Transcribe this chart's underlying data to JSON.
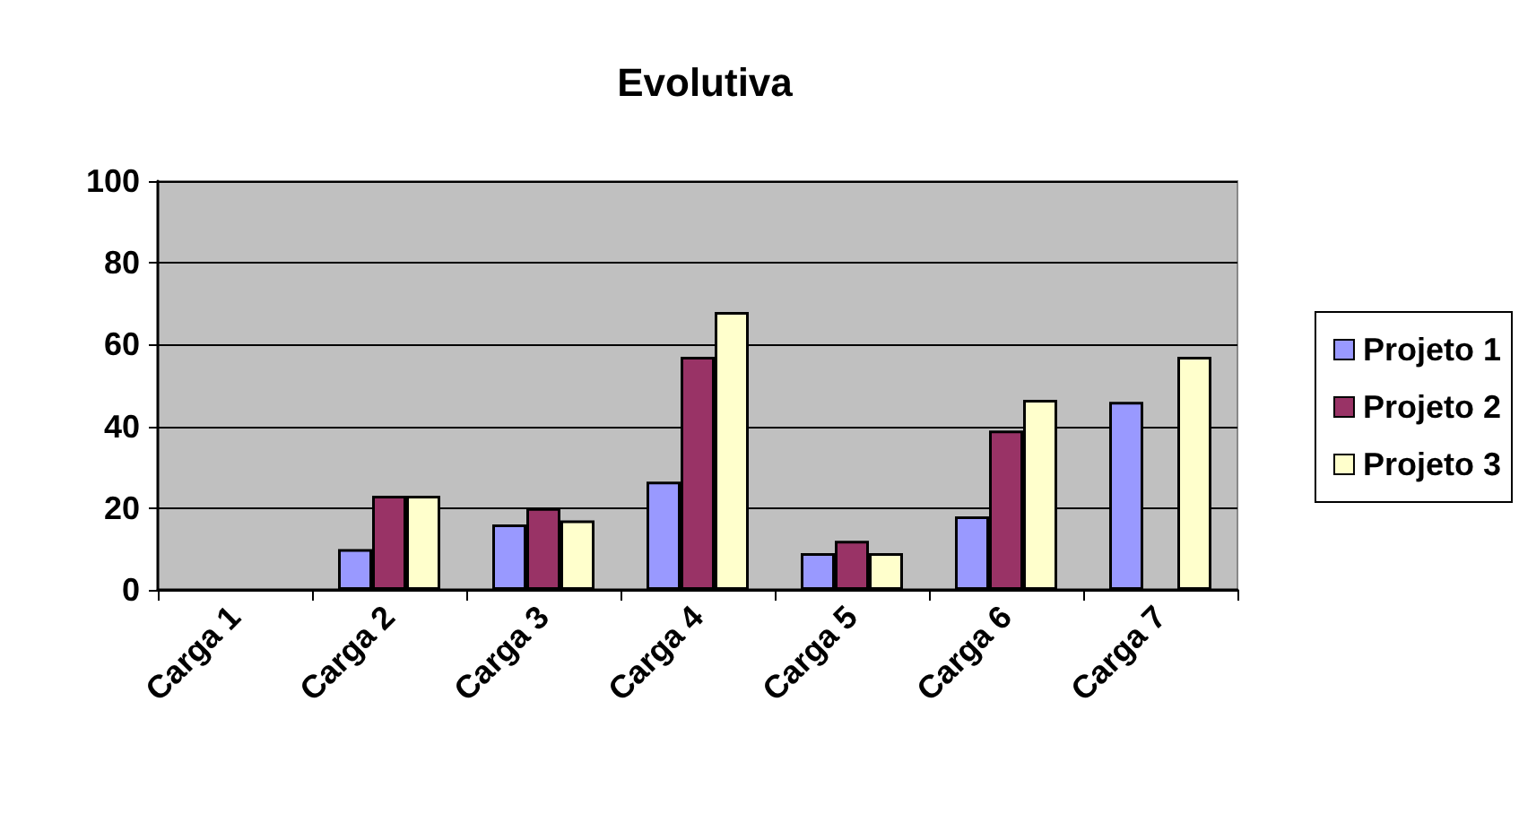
{
  "chart_data": {
    "type": "bar",
    "title": "Evolutiva",
    "categories": [
      "Carga 1",
      "Carga 2",
      "Carga 3",
      "Carga 4",
      "Carga 5",
      "Carga 6",
      "Carga 7"
    ],
    "series": [
      {
        "name": "Projeto 1",
        "color": "#9999ff",
        "values": [
          null,
          10,
          16,
          26.5,
          9,
          18,
          46
        ]
      },
      {
        "name": "Projeto 2",
        "color": "#993366",
        "values": [
          null,
          23,
          20,
          57,
          12,
          39,
          null
        ]
      },
      {
        "name": "Projeto 3",
        "color": "#ffffcc",
        "values": [
          null,
          23,
          17,
          68,
          9,
          46.5,
          57
        ]
      }
    ],
    "ylim": [
      0,
      100
    ],
    "yticks": [
      0,
      20,
      40,
      60,
      80,
      100
    ],
    "grid": "y",
    "legend": "right"
  }
}
